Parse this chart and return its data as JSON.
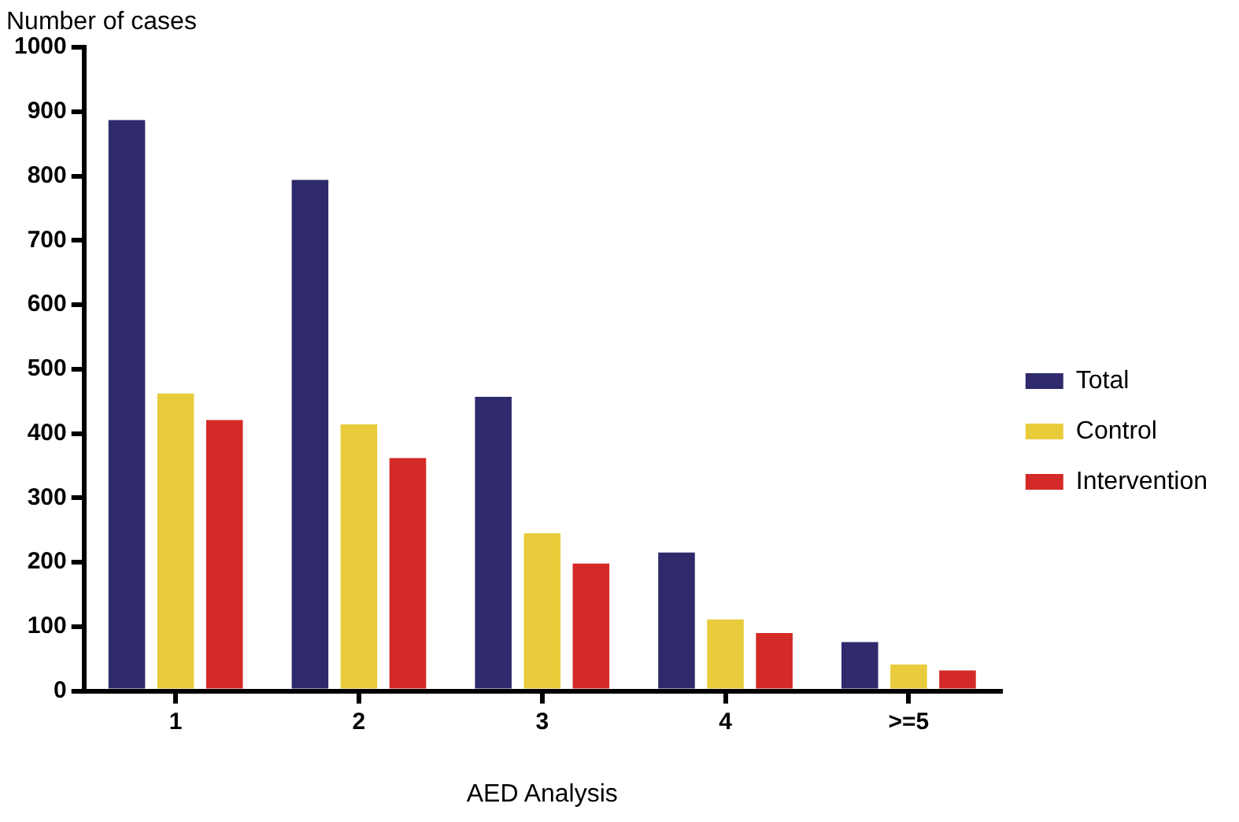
{
  "chart_data": {
    "type": "bar",
    "xlabel": "AED Analysis",
    "ylabel": "Number of cases",
    "categories": [
      "1",
      "2",
      "3",
      "4",
      ">=5"
    ],
    "series": [
      {
        "name": "Total",
        "color": "#2e2a6b",
        "values": [
          887,
          794,
          457,
          215,
          76
        ]
      },
      {
        "name": "Control",
        "color": "#e8cc3c",
        "values": [
          462,
          414,
          245,
          111,
          41
        ]
      },
      {
        "name": "Intervention",
        "color": "#d42a27",
        "values": [
          421,
          362,
          198,
          90,
          32
        ]
      }
    ],
    "ylim": [
      0,
      1000
    ],
    "yticks": [
      0,
      100,
      200,
      300,
      400,
      500,
      600,
      700,
      800,
      900,
      1000
    ],
    "grid": false,
    "legend": "right"
  }
}
